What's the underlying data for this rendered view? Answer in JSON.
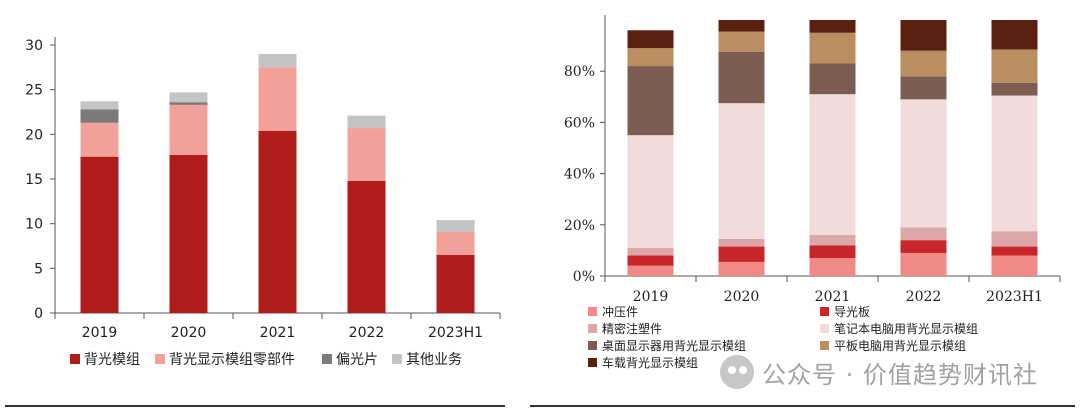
{
  "chart_data": [
    {
      "type": "bar",
      "stacked": true,
      "categories": [
        "2019",
        "2020",
        "2021",
        "2022",
        "2023H1"
      ],
      "ylim": [
        0,
        30
      ],
      "yticks": [
        0,
        5,
        10,
        15,
        20,
        25,
        30
      ],
      "series": [
        {
          "name": "背光模组",
          "color": "#b01c19",
          "values": [
            17.5,
            17.7,
            20.4,
            14.8,
            6.5
          ]
        },
        {
          "name": "背光显示模组零部件",
          "color": "#f2a09a",
          "values": [
            3.8,
            5.6,
            7.1,
            5.9,
            2.6
          ]
        },
        {
          "name": "偏光片",
          "color": "#7a7a7a",
          "values": [
            1.5,
            0.3,
            0.0,
            0.0,
            0.0
          ]
        },
        {
          "name": "其他业务",
          "color": "#c4c4c4",
          "values": [
            0.9,
            1.1,
            1.5,
            1.4,
            1.3
          ]
        }
      ],
      "legend_position": "bottom",
      "grid": false
    },
    {
      "type": "bar",
      "stacked": true,
      "categories": [
        "2019",
        "2020",
        "2021",
        "2022",
        "2023H1"
      ],
      "ylim": [
        0,
        100
      ],
      "yticks": [
        "0%",
        "20%",
        "40%",
        "60%",
        "80%"
      ],
      "ytick_values": [
        0,
        20,
        40,
        60,
        80
      ],
      "series": [
        {
          "name": "冲压件",
          "color": "#ef8a86",
          "values": [
            4,
            5.5,
            7,
            9,
            8
          ]
        },
        {
          "name": "导光板",
          "color": "#c8262a",
          "values": [
            4,
            6,
            5,
            5,
            3.5
          ]
        },
        {
          "name": "精密注塑件",
          "color": "#dba7a8",
          "values": [
            3,
            3,
            4,
            5,
            6
          ]
        },
        {
          "name": "笔记本电脑用背光显示模组",
          "color": "#f1dcdb",
          "values": [
            44,
            53,
            55,
            50,
            53
          ]
        },
        {
          "name": "桌面显示器用背光显示模组",
          "color": "#7d5c54",
          "values": [
            27,
            20,
            12,
            9,
            5
          ]
        },
        {
          "name": "平板电脑用背光显示模组",
          "color": "#b98e60",
          "values": [
            7,
            8,
            12,
            10,
            13
          ]
        },
        {
          "name": "车载背光显示模组",
          "color": "#5a2111",
          "values": [
            7,
            4.5,
            5,
            12,
            11.5
          ]
        }
      ],
      "legend_position": "bottom",
      "grid": false
    }
  ],
  "watermark": {
    "text": "公众号 · 价值趋势财讯社"
  }
}
